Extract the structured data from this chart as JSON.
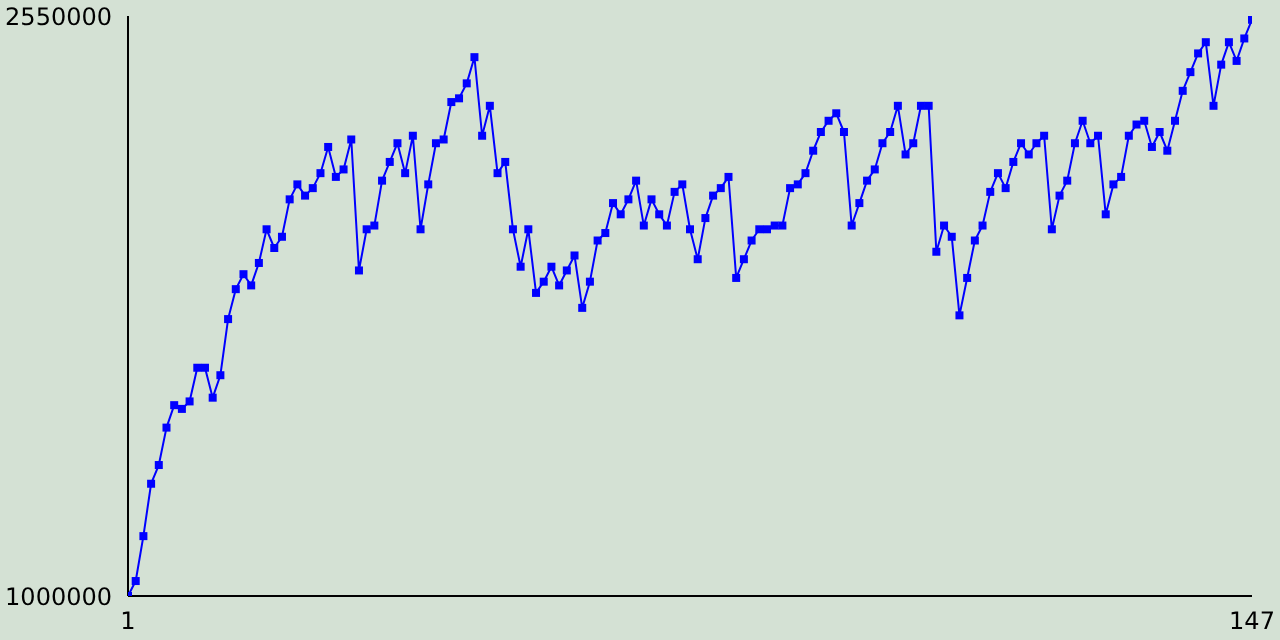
{
  "chart_data": {
    "type": "line",
    "x": [
      1,
      2,
      3,
      4,
      5,
      6,
      7,
      8,
      9,
      10,
      11,
      12,
      13,
      14,
      15,
      16,
      17,
      18,
      19,
      20,
      21,
      22,
      23,
      24,
      25,
      26,
      27,
      28,
      29,
      30,
      31,
      32,
      33,
      34,
      35,
      36,
      37,
      38,
      39,
      40,
      41,
      42,
      43,
      44,
      45,
      46,
      47,
      48,
      49,
      50,
      51,
      52,
      53,
      54,
      55,
      56,
      57,
      58,
      59,
      60,
      61,
      62,
      63,
      64,
      65,
      66,
      67,
      68,
      69,
      70,
      71,
      72,
      73,
      74,
      75,
      76,
      77,
      78,
      79,
      80,
      81,
      82,
      83,
      84,
      85,
      86,
      87,
      88,
      89,
      90,
      91,
      92,
      93,
      94,
      95,
      96,
      97,
      98,
      99,
      100,
      101,
      102,
      103,
      104,
      105,
      106,
      107,
      108,
      109,
      110,
      111,
      112,
      113,
      114,
      115,
      116,
      117,
      118,
      119,
      120,
      121,
      122,
      123,
      124,
      125,
      126,
      127,
      128,
      129,
      130,
      131,
      132,
      133,
      134,
      135,
      136,
      137,
      138,
      139,
      140,
      141,
      142,
      143,
      144,
      145,
      146,
      147
    ],
    "series": [
      {
        "color": "#0000ff",
        "values": [
          1000000,
          1040000,
          1160000,
          1300000,
          1350000,
          1450000,
          1510000,
          1500000,
          1520000,
          1610000,
          1610000,
          1530000,
          1590000,
          1740000,
          1820000,
          1860000,
          1830000,
          1890000,
          1980000,
          1930000,
          1960000,
          2060000,
          2100000,
          2070000,
          2090000,
          2130000,
          2200000,
          2120000,
          2140000,
          2220000,
          1870000,
          1980000,
          1990000,
          2110000,
          2160000,
          2210000,
          2130000,
          2230000,
          1980000,
          2100000,
          2210000,
          2220000,
          2320000,
          2330000,
          2370000,
          2440000,
          2230000,
          2310000,
          2130000,
          2160000,
          1980000,
          1880000,
          1980000,
          1810000,
          1840000,
          1880000,
          1830000,
          1870000,
          1910000,
          1770000,
          1840000,
          1950000,
          1970000,
          2050000,
          2020000,
          2060000,
          2110000,
          1990000,
          2060000,
          2020000,
          1990000,
          2080000,
          2100000,
          1980000,
          1900000,
          2010000,
          2070000,
          2090000,
          2120000,
          1850000,
          1900000,
          1950000,
          1980000,
          1980000,
          1990000,
          1990000,
          2090000,
          2100000,
          2130000,
          2190000,
          2240000,
          2270000,
          2290000,
          2240000,
          1990000,
          2050000,
          2110000,
          2140000,
          2210000,
          2240000,
          2310000,
          2180000,
          2210000,
          2310000,
          2310000,
          1920000,
          1990000,
          1960000,
          1750000,
          1850000,
          1950000,
          1990000,
          2080000,
          2130000,
          2090000,
          2160000,
          2210000,
          2180000,
          2210000,
          2230000,
          1980000,
          2070000,
          2110000,
          2210000,
          2270000,
          2210000,
          2230000,
          2020000,
          2100000,
          2120000,
          2230000,
          2260000,
          2270000,
          2200000,
          2240000,
          2190000,
          2270000,
          2350000,
          2400000,
          2450000,
          2480000,
          2310000,
          2420000,
          2480000,
          2430000,
          2490000,
          2540000
        ]
      }
    ],
    "xlim": [
      1,
      147
    ],
    "xticks": [
      1,
      147
    ],
    "ylim": [
      1000000,
      2550000
    ],
    "yticks": [
      1000000,
      2550000
    ],
    "marker": "square",
    "line_style": "solid"
  }
}
